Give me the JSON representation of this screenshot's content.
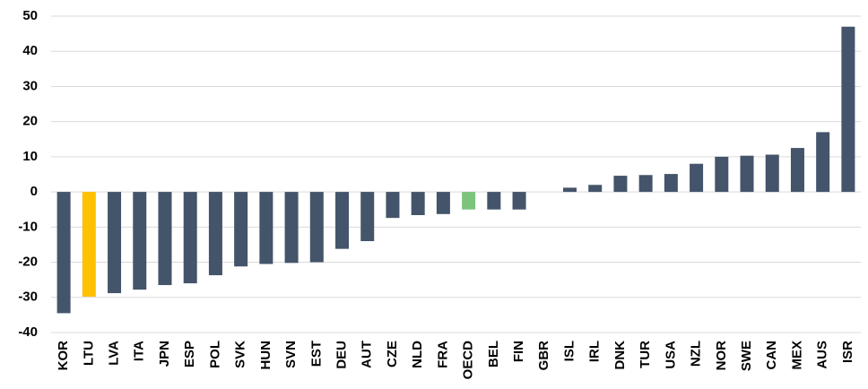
{
  "chart_data": {
    "type": "bar",
    "categories": [
      "KOR",
      "LTU",
      "LVA",
      "ITA",
      "JPN",
      "ESP",
      "POL",
      "SVK",
      "HUN",
      "SVN",
      "EST",
      "DEU",
      "AUT",
      "CZE",
      "NLD",
      "FRA",
      "OECD",
      "BEL",
      "FIN",
      "GBR",
      "ISL",
      "IRL",
      "DNK",
      "TUR",
      "USA",
      "NZL",
      "NOR",
      "SWE",
      "CAN",
      "MEX",
      "AUS",
      "ISR"
    ],
    "values": [
      -34.5,
      -29.8,
      -28.8,
      -27.8,
      -26.5,
      -26,
      -23.7,
      -21.2,
      -20.5,
      -20.2,
      -20,
      -16.2,
      -14,
      -7.4,
      -6.6,
      -6.3,
      -5,
      -5,
      -5,
      0,
      1.2,
      2,
      4.6,
      4.8,
      5.1,
      8,
      10,
      10.3,
      10.6,
      12.5,
      17,
      47
    ],
    "colors": [
      "#44546a",
      "#ffc000",
      "#44546a",
      "#44546a",
      "#44546a",
      "#44546a",
      "#44546a",
      "#44546a",
      "#44546a",
      "#44546a",
      "#44546a",
      "#44546a",
      "#44546a",
      "#44546a",
      "#44546a",
      "#44546a",
      "#7cc47c",
      "#44546a",
      "#44546a",
      "#44546a",
      "#44546a",
      "#44546a",
      "#44546a",
      "#44546a",
      "#44546a",
      "#44546a",
      "#44546a",
      "#44546a",
      "#44546a",
      "#44546a",
      "#44546a",
      "#44546a"
    ],
    "ylim": [
      -40,
      50
    ],
    "yticks": [
      -40,
      -30,
      -20,
      -10,
      0,
      10,
      20,
      30,
      40,
      50
    ],
    "grid": true
  }
}
